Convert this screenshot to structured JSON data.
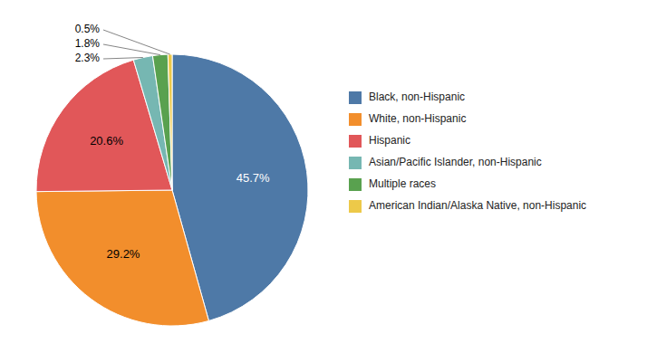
{
  "chart_data": {
    "type": "pie",
    "categories": [
      "Black, non-Hispanic",
      "White, non-Hispanic",
      "Hispanic",
      "Asian/Pacific Islander, non-Hispanic",
      "Multiple races",
      "American Indian/Alaska Native, non-Hispanic"
    ],
    "values": [
      45.7,
      29.2,
      20.6,
      2.3,
      1.8,
      0.5
    ],
    "value_labels": [
      "45.7%",
      "29.2%",
      "20.6%",
      "2.3%",
      "1.8%",
      "0.5%"
    ],
    "data_labels": true,
    "legend": "right"
  }
}
